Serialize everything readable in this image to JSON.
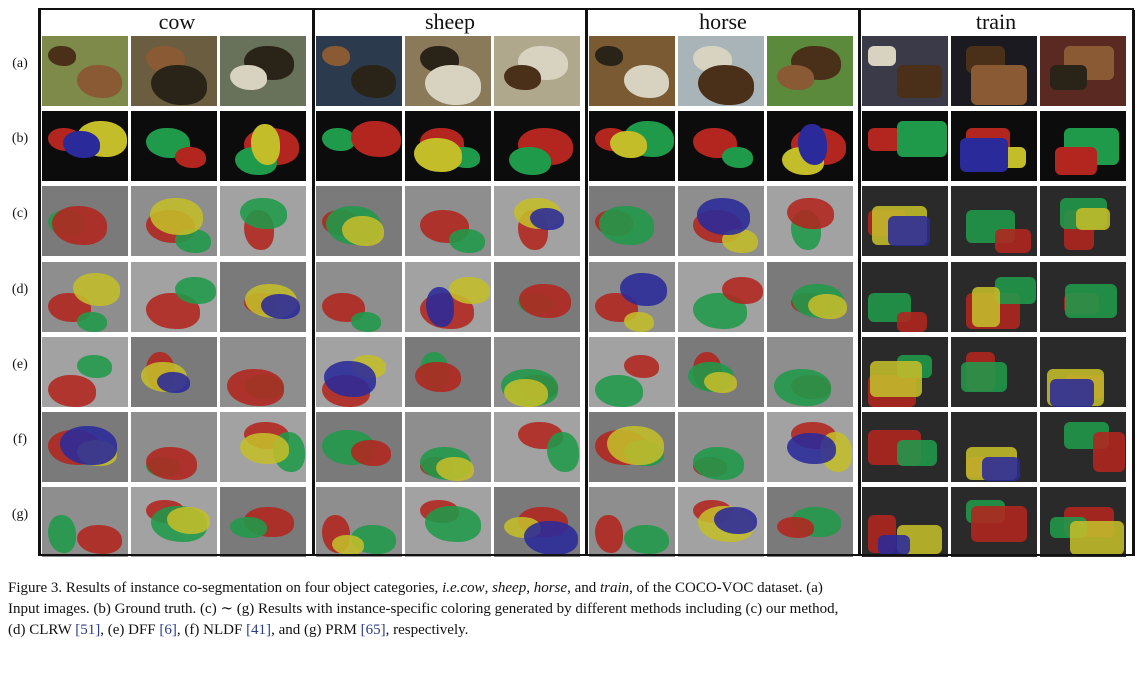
{
  "categories": [
    "cow",
    "sheep",
    "horse",
    "train"
  ],
  "row_labels": [
    "(a)",
    "(b)",
    "(c)",
    "(d)",
    "(e)",
    "(f)",
    "(g)"
  ],
  "caption": {
    "line1_before": "Figure 3. Results of instance co-segmentation on four object categories, ",
    "ie": "i.e.cow",
    "sep1": ", ",
    "sheep": "sheep",
    "sep2": ", ",
    "horse": "horse",
    "sep3": ", and ",
    "train": "train",
    "line1_after": ", of the COCO-VOC dataset. (a)",
    "line2": "Input images. (b) Ground truth. (c) ∼ (g) Results with instance-specific coloring generated by different methods including (c) our method,",
    "line3_a": "(d) CLRW ",
    "ref51": "[51]",
    "line3_b": ", (e) DFF ",
    "ref6": "[6]",
    "line3_c": ", (f) NLDF ",
    "ref41": "[41]",
    "line3_d": ", and (g) PRM ",
    "ref65": "[65]",
    "line3_e": ", respectively."
  },
  "colors": {
    "seg_red": "#b3251f",
    "seg_green": "#1f9a4a",
    "seg_yellow": "#c4bd2a",
    "seg_blue": "#2a2a9a",
    "seg_purple": "#8a2ab0",
    "ref_link": "#2a3c8a"
  }
}
